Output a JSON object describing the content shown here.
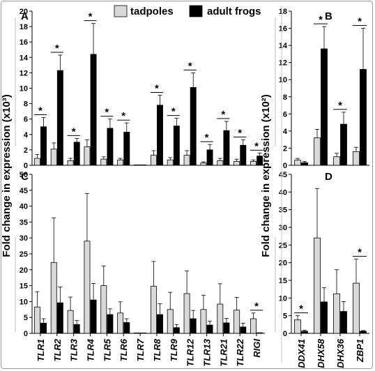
{
  "figure": {
    "ylabel_left": "Fold change in expression (x10³)",
    "ylabel_right": "Fold change in expression (x10²)"
  },
  "legend": [
    {
      "label": "tadpoles",
      "color": "#d9d9d9"
    },
    {
      "label": "adult frogs",
      "color": "#000000"
    }
  ],
  "chart_data": [
    {
      "panel": "A",
      "type": "bar",
      "title": "",
      "xlabel": "",
      "ylabel": "Fold change in expression (x10³)",
      "ylim": [
        0,
        20
      ],
      "yticks": [
        0,
        2,
        4,
        6,
        8,
        10,
        12,
        14,
        16,
        18,
        20
      ],
      "categories": [
        "TLR1",
        "TLR2",
        "TLR3",
        "TLR4",
        "TLR5",
        "TLR6",
        "TLR7",
        "TLR8",
        "TLR9",
        "TLR12",
        "TLR13",
        "TLR21",
        "TLR22",
        "RIGI"
      ],
      "series": [
        {
          "name": "tadpoles",
          "values": [
            0.9,
            2.1,
            0.6,
            2.4,
            0.8,
            0.7,
            0.05,
            1.3,
            0.7,
            1.3,
            0.3,
            0.6,
            0.5,
            0.5
          ],
          "errors": [
            0.5,
            0.8,
            0.3,
            0.9,
            0.3,
            0.2,
            0.05,
            0.6,
            0.3,
            0.6,
            0.15,
            0.3,
            0.3,
            0.2
          ]
        },
        {
          "name": "adult frogs",
          "values": [
            5.0,
            12.3,
            3.0,
            14.4,
            4.8,
            4.3,
            0.05,
            7.8,
            5.1,
            10.1,
            2.0,
            4.5,
            2.6,
            1.2
          ],
          "errors": [
            1.2,
            2.0,
            0.5,
            4.0,
            1.2,
            1.2,
            0.05,
            1.3,
            1.0,
            1.9,
            0.7,
            1.2,
            0.7,
            0.4
          ]
        }
      ],
      "significant": [
        true,
        true,
        true,
        true,
        true,
        true,
        false,
        true,
        true,
        true,
        true,
        true,
        true,
        true
      ]
    },
    {
      "panel": "B",
      "type": "bar",
      "title": "",
      "xlabel": "",
      "ylabel": "Fold change in expression (x10²)",
      "ylim": [
        0,
        18
      ],
      "yticks": [
        0,
        2,
        4,
        6,
        8,
        10,
        12,
        14,
        16,
        18
      ],
      "categories": [
        "DDX41",
        "DHX58",
        "DHX36",
        "ZBP1"
      ],
      "series": [
        {
          "name": "tadpoles",
          "values": [
            0.6,
            3.2,
            1.0,
            1.6
          ],
          "errors": [
            0.2,
            1.0,
            0.4,
            0.5
          ]
        },
        {
          "name": "adult frogs",
          "values": [
            0.3,
            13.6,
            4.8,
            11.2
          ],
          "errors": [
            0.15,
            2.6,
            1.4,
            4.8
          ]
        }
      ],
      "significant": [
        false,
        true,
        true,
        true
      ]
    },
    {
      "panel": "C",
      "type": "bar",
      "title": "",
      "xlabel": "",
      "ylabel": "Fold change in expression (x10³)",
      "ylim": [
        0,
        50
      ],
      "yticks": [
        0,
        5,
        10,
        15,
        20,
        25,
        30,
        35,
        40,
        45,
        50
      ],
      "categories": [
        "TLR1",
        "TLR2",
        "TLR3",
        "TLR4",
        "TLR5",
        "TLR6",
        "TLR7",
        "TLR8",
        "TLR9",
        "TLR12",
        "TLR13",
        "TLR21",
        "TLR22",
        "RIGI"
      ],
      "series": [
        {
          "name": "tadpoles",
          "values": [
            8.3,
            22.3,
            7.2,
            29.0,
            15.0,
            6.4,
            0.1,
            14.8,
            7.5,
            12.5,
            7.5,
            9.2,
            7.3,
            4.6
          ],
          "errors": [
            4.8,
            14.0,
            4.2,
            15.0,
            6.2,
            3.5,
            0.1,
            7.8,
            5.4,
            7.1,
            4.5,
            6.4,
            4.0,
            1.8
          ]
        },
        {
          "name": "adult frogs",
          "values": [
            3.2,
            9.6,
            2.8,
            10.5,
            5.9,
            3.4,
            0.1,
            5.9,
            1.8,
            4.6,
            2.6,
            3.3,
            2.0,
            0.2
          ],
          "errors": [
            1.4,
            5.0,
            1.2,
            5.2,
            1.8,
            1.2,
            0.1,
            3.4,
            1.0,
            2.6,
            1.2,
            1.4,
            1.2,
            0.1
          ]
        }
      ],
      "significant": [
        false,
        false,
        false,
        false,
        false,
        false,
        false,
        false,
        false,
        false,
        false,
        false,
        false,
        true
      ]
    },
    {
      "panel": "D",
      "type": "bar",
      "title": "",
      "xlabel": "",
      "ylabel": "Fold change in expression (x10²)",
      "ylim": [
        0,
        45
      ],
      "yticks": [
        0,
        5,
        10,
        15,
        20,
        25,
        30,
        35,
        40,
        45
      ],
      "categories": [
        "DDX41",
        "DHX58",
        "DHX36",
        "ZBP1"
      ],
      "series": [
        {
          "name": "tadpoles",
          "values": [
            3.8,
            27.0,
            11.2,
            14.2
          ],
          "errors": [
            1.2,
            14.0,
            6.8,
            6.8
          ]
        },
        {
          "name": "adult frogs",
          "values": [
            0.6,
            8.9,
            6.2,
            0.6
          ],
          "errors": [
            0.3,
            4.0,
            2.8,
            0.2
          ]
        }
      ],
      "significant": [
        true,
        false,
        false,
        true
      ]
    }
  ]
}
